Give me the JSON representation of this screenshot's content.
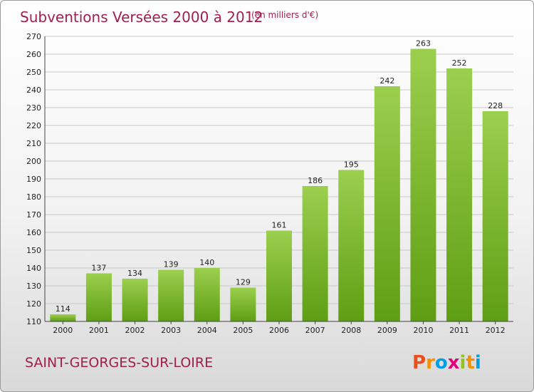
{
  "chart_data": {
    "type": "bar",
    "title": "Subventions Versées 2000 à 2012",
    "subtitle": "(en milliers d'€)",
    "categories": [
      "2000",
      "2001",
      "2002",
      "2003",
      "2004",
      "2005",
      "2006",
      "2007",
      "2008",
      "2009",
      "2010",
      "2011",
      "2012"
    ],
    "values": [
      114,
      137,
      134,
      139,
      140,
      129,
      161,
      186,
      195,
      242,
      263,
      252,
      228
    ],
    "yticks": [
      110,
      120,
      130,
      140,
      150,
      160,
      170,
      180,
      190,
      200,
      210,
      220,
      230,
      240,
      250,
      260,
      270
    ],
    "ylim": [
      110,
      270
    ],
    "grid": true,
    "bar_color_top": "#9ccf4e",
    "bar_color_bottom": "#5e9e14"
  },
  "location": "SAINT-GEORGES-SUR-LOIRE",
  "logo": {
    "letters": [
      "P",
      "r",
      "o",
      "x",
      "i",
      "t",
      "i"
    ],
    "colors": [
      "#e94e1b",
      "#f39200",
      "#009fe3",
      "#e2007a",
      "#95c11f",
      "#f39200",
      "#009fe3"
    ]
  }
}
